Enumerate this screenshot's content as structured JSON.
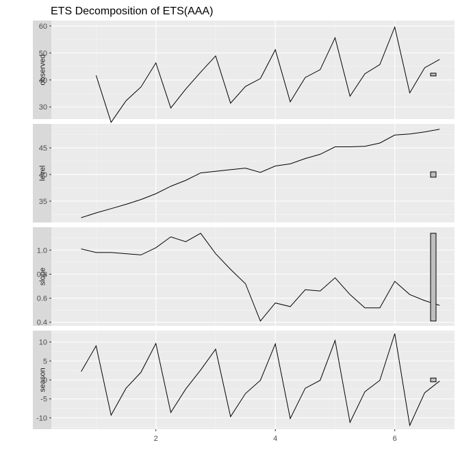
{
  "chart_data": {
    "type": "line",
    "title": "ETS Decomposition of ETS(AAA)",
    "x_ticks": [
      2,
      4,
      6
    ],
    "xlim": [
      0.25,
      7.0
    ],
    "panels": [
      {
        "name": "observed",
        "ylim": [
          25.5,
          62.0
        ],
        "y_ticks": [
          30,
          40,
          50,
          60
        ],
        "x": [
          1.0,
          1.25,
          1.5,
          1.75,
          2.0,
          2.25,
          2.5,
          2.75,
          3.0,
          3.25,
          3.5,
          3.75,
          4.0,
          4.25,
          4.5,
          4.75,
          5.0,
          5.25,
          5.5,
          5.75,
          6.0,
          6.25,
          6.5,
          6.75
        ],
        "values": [
          41.7,
          24.3,
          32.3,
          37.4,
          46.3,
          29.6,
          36.6,
          42.9,
          48.9,
          31.4,
          37.6,
          40.5,
          51.2,
          31.9,
          40.9,
          43.8,
          55.6,
          34.0,
          42.3,
          45.7,
          59.6,
          35.2,
          44.5,
          47.6
        ],
        "scale_bar": [
          41.5,
          42.5
        ]
      },
      {
        "name": "level",
        "ylim": [
          31.0,
          49.5
        ],
        "y_ticks": [
          35,
          40,
          45
        ],
        "x": [
          0.75,
          1.0,
          1.25,
          1.5,
          1.75,
          2.0,
          2.25,
          2.5,
          2.75,
          3.0,
          3.25,
          3.5,
          3.75,
          4.0,
          4.25,
          4.5,
          4.75,
          5.0,
          5.25,
          5.5,
          5.75,
          6.0,
          6.25,
          6.5,
          6.75
        ],
        "values": [
          31.9,
          32.8,
          33.6,
          34.4,
          35.3,
          36.4,
          37.8,
          38.9,
          40.3,
          40.6,
          40.9,
          41.2,
          40.4,
          41.6,
          42.0,
          43.0,
          43.8,
          45.2,
          45.2,
          45.3,
          45.9,
          47.4,
          47.6,
          48.0,
          48.5
        ],
        "scale_bar": [
          39.5,
          40.5
        ]
      },
      {
        "name": "slope",
        "ylim": [
          0.37,
          1.19
        ],
        "y_ticks": [
          0.4,
          0.6,
          0.8,
          1.0
        ],
        "y_tick_labels": [
          "0.4",
          "0.6",
          "0.8",
          "1.0"
        ],
        "x": [
          0.75,
          1.0,
          1.25,
          1.5,
          1.75,
          2.0,
          2.25,
          2.5,
          2.75,
          3.0,
          3.25,
          3.5,
          3.75,
          4.0,
          4.25,
          4.5,
          4.75,
          5.0,
          5.25,
          5.5,
          5.75,
          6.0,
          6.25,
          6.5,
          6.75
        ],
        "values": [
          1.01,
          0.98,
          0.98,
          0.97,
          0.96,
          1.02,
          1.11,
          1.07,
          1.14,
          0.97,
          0.84,
          0.72,
          0.41,
          0.56,
          0.53,
          0.67,
          0.66,
          0.77,
          0.63,
          0.52,
          0.52,
          0.74,
          0.63,
          0.58,
          0.54
        ],
        "scale_bar": [
          0.41,
          1.14
        ]
      },
      {
        "name": "season",
        "ylim": [
          -13.0,
          13.0
        ],
        "y_ticks": [
          -10,
          -5,
          0,
          5,
          10
        ],
        "x": [
          0.75,
          1.0,
          1.25,
          1.5,
          1.75,
          2.0,
          2.25,
          2.5,
          2.75,
          3.0,
          3.25,
          3.5,
          3.75,
          4.0,
          4.25,
          4.5,
          4.75,
          5.0,
          5.25,
          5.5,
          5.75,
          6.0,
          6.25,
          6.5,
          6.75
        ],
        "values": [
          2.2,
          9.0,
          -9.3,
          -2.2,
          2.0,
          9.6,
          -8.6,
          -2.4,
          2.6,
          8.1,
          -9.7,
          -3.6,
          -0.1,
          9.5,
          -10.2,
          -2.2,
          -0.1,
          10.4,
          -11.2,
          -3.1,
          -0.1,
          12.2,
          -12.0,
          -3.4,
          -0.3
        ],
        "scale_bar": [
          -0.5,
          0.5
        ]
      }
    ]
  }
}
